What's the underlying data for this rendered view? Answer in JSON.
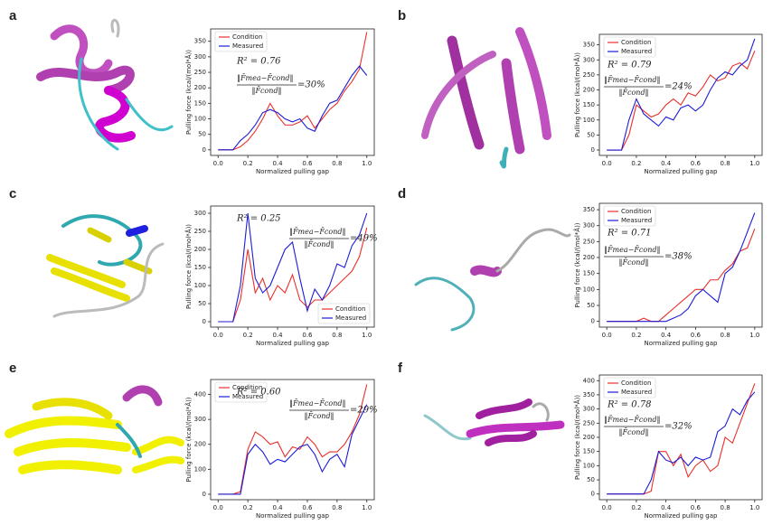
{
  "chart_data": [
    {
      "type": "line",
      "panel": "a",
      "xlabel": "Normalized pulling gap",
      "ylabel": "Pulling force (kcal/(mol*Å))",
      "x": [
        0,
        0.05,
        0.1,
        0.15,
        0.2,
        0.25,
        0.3,
        0.35,
        0.4,
        0.45,
        0.5,
        0.55,
        0.6,
        0.65,
        0.7,
        0.75,
        0.8,
        0.85,
        0.9,
        0.95,
        1.0
      ],
      "series": [
        {
          "name": "Condition",
          "color": "#e8302b",
          "values": [
            0,
            0,
            0,
            10,
            30,
            60,
            100,
            150,
            110,
            80,
            80,
            90,
            110,
            70,
            100,
            130,
            150,
            190,
            220,
            260,
            380
          ]
        },
        {
          "name": "Measured",
          "color": "#1c1cd6",
          "values": [
            0,
            0,
            0,
            30,
            50,
            80,
            120,
            130,
            120,
            100,
            90,
            100,
            70,
            60,
            110,
            150,
            160,
            200,
            240,
            270,
            240
          ]
        }
      ],
      "xlim": [
        -0.05,
        1.05
      ],
      "xticks": [
        {
          "value": 0,
          "label": "0.0"
        },
        0.2,
        0.4,
        0.6,
        0.8,
        {
          "value": 1,
          "label": "1.0"
        }
      ],
      "ylim": [
        -18,
        390
      ],
      "yticks": [
        0,
        50,
        100,
        150,
        200,
        250,
        300,
        350
      ],
      "legend": "upper left",
      "annotation": {
        "r2": "R² = 0.76",
        "numerator": "‖F̄mea−F̄cond‖",
        "denominator": "‖F̄cond‖",
        "ratio": "=30%"
      }
    },
    {
      "type": "line",
      "panel": "b",
      "xlabel": "Normalized pulling gap",
      "ylabel": "Pulling force (kcal/(mol*Å))",
      "x": [
        0,
        0.05,
        0.1,
        0.15,
        0.2,
        0.25,
        0.3,
        0.35,
        0.4,
        0.45,
        0.5,
        0.55,
        0.6,
        0.65,
        0.7,
        0.75,
        0.8,
        0.85,
        0.9,
        0.95,
        1.0
      ],
      "series": [
        {
          "name": "Condition",
          "color": "#e8302b",
          "values": [
            0,
            0,
            0,
            50,
            150,
            130,
            110,
            120,
            150,
            170,
            150,
            190,
            180,
            210,
            250,
            230,
            240,
            280,
            290,
            270,
            330
          ]
        },
        {
          "name": "Measured",
          "color": "#1c1cd6",
          "values": [
            0,
            0,
            0,
            100,
            170,
            120,
            100,
            80,
            110,
            100,
            140,
            150,
            130,
            150,
            200,
            240,
            260,
            250,
            280,
            300,
            370
          ]
        }
      ],
      "xlim": [
        -0.05,
        1.05
      ],
      "xticks": [
        {
          "value": 0,
          "label": "0.0"
        },
        0.2,
        0.4,
        0.6,
        0.8,
        {
          "value": 1,
          "label": "1.0"
        }
      ],
      "ylim": [
        -18,
        385
      ],
      "yticks": [
        0,
        50,
        100,
        150,
        200,
        250,
        300,
        350
      ],
      "legend": "upper left",
      "annotation": {
        "r2": "R² = 0.79",
        "numerator": "‖F̄mea−F̄cond‖",
        "denominator": "‖F̄cond‖",
        "ratio": "=24%"
      }
    },
    {
      "type": "line",
      "panel": "c",
      "xlabel": "Normalized pulling gap",
      "ylabel": "Pulling force (kcal/(mol*Å))",
      "x": [
        0,
        0.05,
        0.1,
        0.15,
        0.2,
        0.25,
        0.3,
        0.35,
        0.4,
        0.45,
        0.5,
        0.55,
        0.6,
        0.65,
        0.7,
        0.75,
        0.8,
        0.85,
        0.9,
        0.95,
        1.0
      ],
      "series": [
        {
          "name": "Condition",
          "color": "#e8302b",
          "values": [
            0,
            0,
            0,
            60,
            200,
            80,
            120,
            60,
            100,
            80,
            130,
            60,
            40,
            60,
            60,
            80,
            100,
            120,
            140,
            180,
            260
          ]
        },
        {
          "name": "Measured",
          "color": "#1c1cd6",
          "values": [
            0,
            0,
            0,
            100,
            300,
            120,
            80,
            100,
            150,
            200,
            220,
            120,
            30,
            90,
            60,
            100,
            160,
            150,
            210,
            240,
            300
          ]
        }
      ],
      "xlim": [
        -0.05,
        1.05
      ],
      "xticks": [
        {
          "value": 0,
          "label": "0.0"
        },
        0.2,
        0.4,
        0.6,
        0.8,
        {
          "value": 1,
          "label": "1.0"
        }
      ],
      "ylim": [
        -15,
        320
      ],
      "yticks": [
        0,
        50,
        100,
        150,
        200,
        250,
        300
      ],
      "legend": "lower right",
      "annotation": {
        "r2": "R² = 0.25",
        "numerator": "‖F̄mea−F̄cond‖",
        "denominator": "‖F̄cond‖",
        "ratio": "=49%"
      }
    },
    {
      "type": "line",
      "panel": "d",
      "xlabel": "Normalized pulling gap",
      "ylabel": "Pulling force (kcal/(mol*Å))",
      "x": [
        0,
        0.05,
        0.1,
        0.15,
        0.2,
        0.25,
        0.3,
        0.35,
        0.4,
        0.45,
        0.5,
        0.55,
        0.6,
        0.65,
        0.7,
        0.75,
        0.8,
        0.85,
        0.9,
        0.95,
        1.0
      ],
      "series": [
        {
          "name": "Condition",
          "color": "#e8302b",
          "values": [
            0,
            0,
            0,
            0,
            0,
            10,
            0,
            0,
            20,
            40,
            60,
            80,
            100,
            100,
            130,
            130,
            160,
            180,
            220,
            230,
            290
          ]
        },
        {
          "name": "Measured",
          "color": "#1c1cd6",
          "values": [
            0,
            0,
            0,
            0,
            0,
            0,
            0,
            0,
            0,
            10,
            20,
            40,
            80,
            100,
            80,
            60,
            150,
            170,
            220,
            280,
            340
          ]
        }
      ],
      "xlim": [
        -0.05,
        1.05
      ],
      "xticks": [
        {
          "value": 0,
          "label": "0.0"
        },
        0.2,
        0.4,
        0.6,
        0.8,
        {
          "value": 1,
          "label": "1.0"
        }
      ],
      "ylim": [
        -18,
        370
      ],
      "yticks": [
        0,
        50,
        100,
        150,
        200,
        250,
        300,
        350
      ],
      "legend": "upper left",
      "annotation": {
        "r2": "R² = 0.71",
        "numerator": "‖F̄mea−F̄cond‖",
        "denominator": "‖F̄cond‖",
        "ratio": "=38%"
      }
    },
    {
      "type": "line",
      "panel": "e",
      "xlabel": "Normalized pulling gap",
      "ylabel": "Pulling force (kcal/(mol*Å))",
      "x": [
        0,
        0.05,
        0.1,
        0.15,
        0.2,
        0.25,
        0.3,
        0.35,
        0.4,
        0.45,
        0.5,
        0.55,
        0.6,
        0.65,
        0.7,
        0.75,
        0.8,
        0.85,
        0.9,
        0.95,
        1.0
      ],
      "series": [
        {
          "name": "Condition",
          "color": "#e8302b",
          "values": [
            0,
            0,
            0,
            10,
            180,
            250,
            230,
            200,
            210,
            150,
            190,
            180,
            230,
            200,
            150,
            170,
            170,
            200,
            250,
            320,
            440
          ]
        },
        {
          "name": "Measured",
          "color": "#1c1cd6",
          "values": [
            0,
            0,
            0,
            0,
            160,
            200,
            170,
            120,
            140,
            130,
            160,
            190,
            200,
            160,
            90,
            140,
            160,
            110,
            240,
            300,
            360
          ]
        }
      ],
      "xlim": [
        -0.05,
        1.05
      ],
      "xticks": [
        {
          "value": 0,
          "label": "0.0"
        },
        0.2,
        0.4,
        0.6,
        0.8,
        {
          "value": 1,
          "label": "1.0"
        }
      ],
      "ylim": [
        -22,
        460
      ],
      "yticks": [
        0,
        100,
        200,
        300,
        400
      ],
      "legend": "upper left",
      "annotation": {
        "r2": "R² = 0.60",
        "numerator": "‖F̄mea−F̄cond‖",
        "denominator": "‖F̄cond‖",
        "ratio": "=29%"
      }
    },
    {
      "type": "line",
      "panel": "f",
      "xlabel": "Normalized pulling gap",
      "ylabel": "Pulling force (kcal/(mol*Å))",
      "x": [
        0,
        0.05,
        0.1,
        0.15,
        0.2,
        0.25,
        0.3,
        0.35,
        0.4,
        0.45,
        0.5,
        0.55,
        0.6,
        0.65,
        0.7,
        0.75,
        0.8,
        0.85,
        0.9,
        0.95,
        1.0
      ],
      "series": [
        {
          "name": "Condition",
          "color": "#e8302b",
          "values": [
            0,
            0,
            0,
            0,
            0,
            0,
            10,
            150,
            150,
            100,
            140,
            60,
            100,
            120,
            80,
            100,
            200,
            180,
            250,
            320,
            390
          ]
        },
        {
          "name": "Measured",
          "color": "#1c1cd6",
          "values": [
            0,
            0,
            0,
            0,
            0,
            0,
            50,
            150,
            120,
            110,
            130,
            100,
            130,
            120,
            130,
            220,
            240,
            300,
            280,
            330,
            360
          ]
        }
      ],
      "xlim": [
        -0.05,
        1.05
      ],
      "xticks": [
        {
          "value": 0,
          "label": "0.0"
        },
        0.2,
        0.4,
        0.6,
        0.8,
        {
          "value": 1,
          "label": "1.0"
        }
      ],
      "ylim": [
        -20,
        420
      ],
      "yticks": [
        0,
        50,
        100,
        150,
        200,
        250,
        300,
        350,
        400
      ],
      "legend": "upper left",
      "annotation": {
        "r2": "R² = 0.78",
        "numerator": "‖F̄mea−F̄cond‖",
        "denominator": "‖F̄cond‖",
        "ratio": "=32%"
      }
    }
  ]
}
